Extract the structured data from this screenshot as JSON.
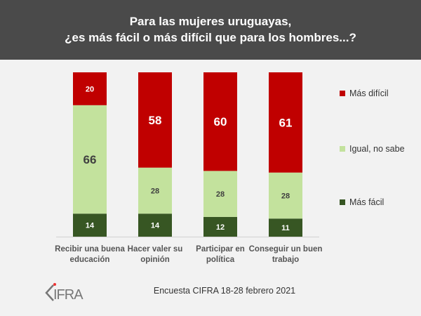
{
  "header": {
    "title_line1": "Para las mujeres uruguayas,",
    "title_line2": "¿es más fácil o más difícil que para los hombres...?"
  },
  "chart_data": {
    "type": "bar",
    "stacked": true,
    "categories": [
      [
        "Recibir una buena",
        "educación"
      ],
      [
        "Hacer valer su",
        "opinión"
      ],
      [
        "Participar en",
        "política"
      ],
      [
        "Conseguir un buen",
        "trabajo"
      ]
    ],
    "series": [
      {
        "name": "Más fácil",
        "color": "#375623",
        "values": [
          14,
          14,
          12,
          11
        ]
      },
      {
        "name": "Igual, no sabe",
        "color": "#c3e29d",
        "values": [
          66,
          28,
          28,
          28
        ]
      },
      {
        "name": "Más difícil",
        "color": "#c00000",
        "values": [
          20,
          58,
          60,
          61
        ]
      }
    ],
    "ylim": [
      0,
      100
    ],
    "grid": false,
    "legend_position": "right"
  },
  "legend": [
    {
      "label": "Más difícil",
      "color": "#c00000"
    },
    {
      "label": "Igual, no sabe",
      "color": "#c3e29d"
    },
    {
      "label": "Más fácil",
      "color": "#375623"
    }
  ],
  "footer": {
    "source": "Encuesta CIFRA  18-28 febrero  2021"
  },
  "logo": {
    "text": "CIFRA"
  }
}
